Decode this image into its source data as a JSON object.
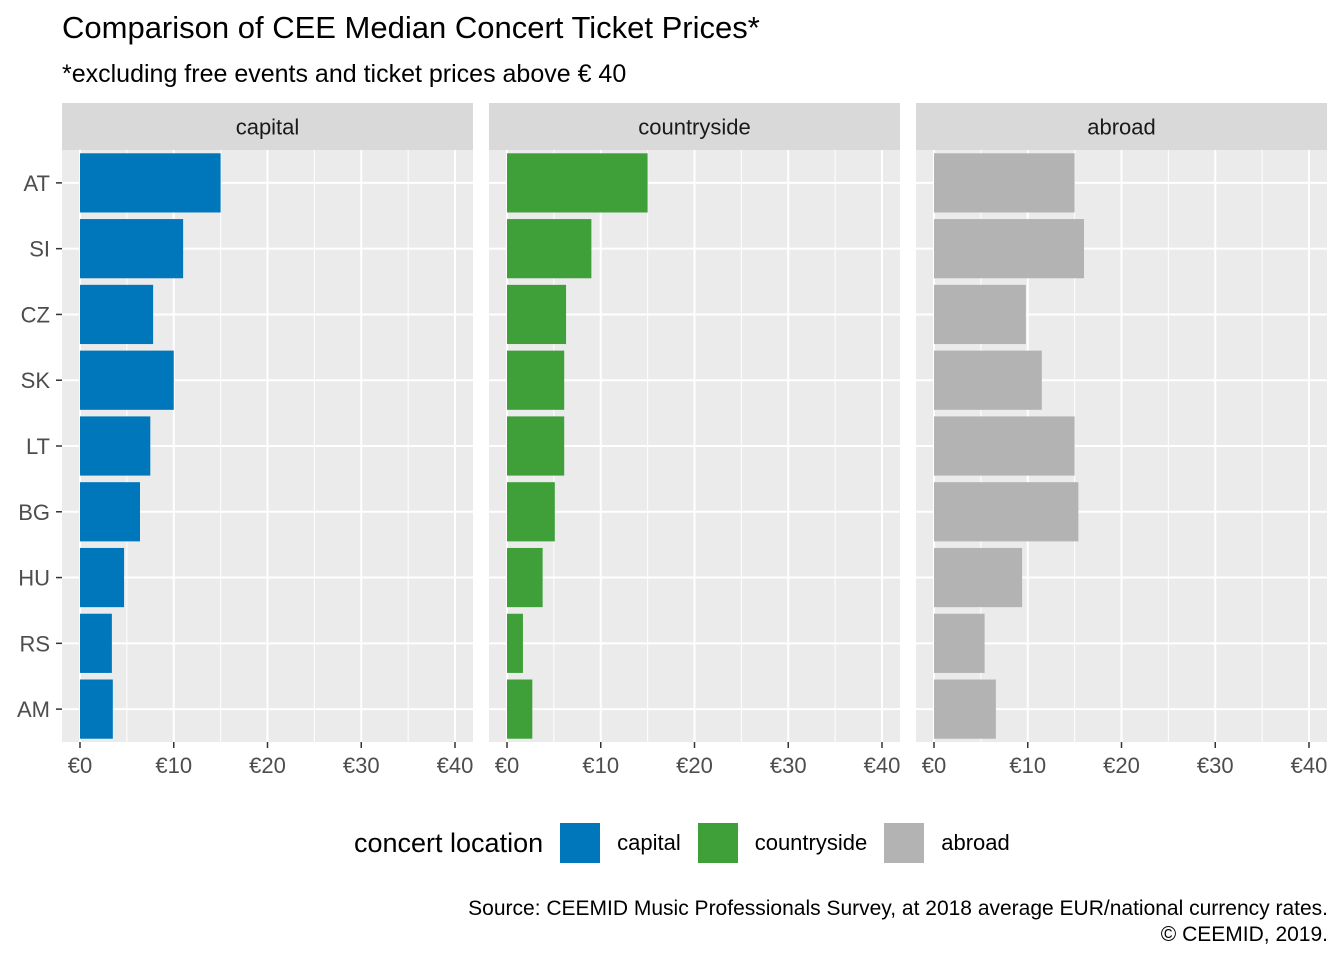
{
  "chart_data": {
    "type": "bar",
    "orientation": "horizontal",
    "title": "Comparison of CEE Median Concert Ticket Prices*",
    "subtitle": "*excluding free events and ticket prices above € 40",
    "caption": [
      "Source: CEEMID Music Professionals Survey, at 2018 average EUR/national currency rates.",
      "© CEEMID, 2019."
    ],
    "categories": [
      "AT",
      "SI",
      "CZ",
      "SK",
      "LT",
      "BG",
      "HU",
      "RS",
      "AM"
    ],
    "xlim": [
      0,
      40
    ],
    "x_ticks": [
      {
        "value": 0,
        "label": "€0"
      },
      {
        "value": 10,
        "label": "€10"
      },
      {
        "value": 20,
        "label": "€20"
      },
      {
        "value": 30,
        "label": "€30"
      },
      {
        "value": 40,
        "label": "€40"
      }
    ],
    "grid": true,
    "legend_title": "concert location",
    "legend_position": "bottom",
    "facets": [
      {
        "name": "capital",
        "color": "#0077BB",
        "values": [
          15.0,
          11.0,
          7.8,
          10.0,
          7.5,
          6.4,
          4.7,
          3.4,
          3.5
        ]
      },
      {
        "name": "countryside",
        "color": "#3FA03A",
        "values": [
          15.0,
          9.0,
          6.3,
          6.1,
          6.1,
          5.1,
          3.8,
          1.7,
          2.7
        ]
      },
      {
        "name": "abroad",
        "color": "#B3B3B3",
        "values": [
          15.0,
          16.0,
          9.8,
          11.5,
          15.0,
          15.4,
          9.4,
          5.4,
          6.6
        ]
      }
    ]
  }
}
